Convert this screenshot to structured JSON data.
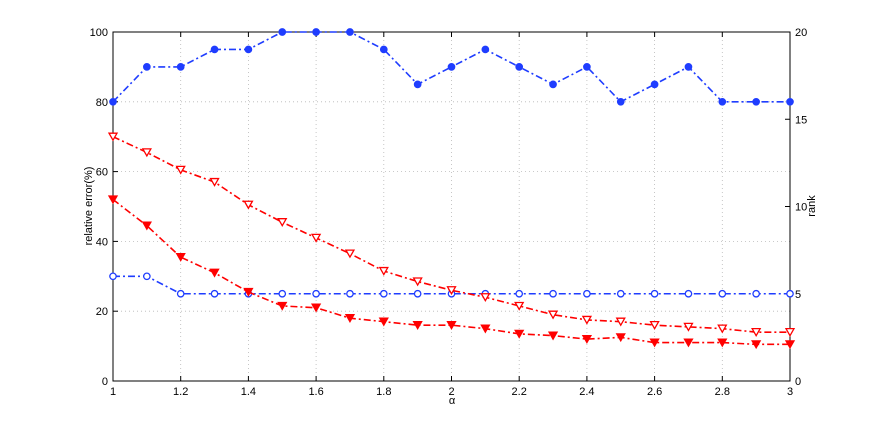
{
  "chart_data": {
    "type": "line",
    "xlabel": "α",
    "ylabel_left": "relative error(%)",
    "ylabel_right": "rank",
    "xlim": [
      1,
      3
    ],
    "ylim_left": [
      0,
      100
    ],
    "ylim_right": [
      0,
      20
    ],
    "grid": true,
    "x": [
      1.0,
      1.1,
      1.2,
      1.3,
      1.4,
      1.5,
      1.6,
      1.7,
      1.8,
      1.9,
      2.0,
      2.1,
      2.2,
      2.3,
      2.4,
      2.5,
      2.6,
      2.7,
      2.8,
      2.9,
      3.0
    ],
    "x_ticks": [
      "1",
      "1.2",
      "1.4",
      "1.6",
      "1.8",
      "2",
      "2.2",
      "2.4",
      "2.6",
      "2.8",
      "3"
    ],
    "y_ticks_left": [
      "0",
      "20",
      "40",
      "60",
      "80",
      "100"
    ],
    "y_ticks_right": [
      "0",
      "5",
      "10",
      "15",
      "20"
    ],
    "series": [
      {
        "axis": "right",
        "color": "#1f3dff",
        "marker": "circle-filled",
        "values": [
          16,
          18,
          18,
          19,
          19,
          20,
          20,
          20,
          19,
          17,
          18,
          19,
          18,
          17,
          18,
          16,
          17,
          18,
          16,
          16,
          16
        ]
      },
      {
        "axis": "right",
        "color": "#1f3dff",
        "marker": "circle-open",
        "values": [
          6,
          6,
          5,
          5,
          5,
          5,
          5,
          5,
          5,
          5,
          5,
          5,
          5,
          5,
          5,
          5,
          5,
          5,
          5,
          5,
          5
        ]
      },
      {
        "axis": "left",
        "color": "#ff0000",
        "marker": "triangle-down-open",
        "values": [
          70,
          65.5,
          60.5,
          57,
          50.5,
          45.5,
          41,
          36.5,
          31.5,
          28.5,
          26,
          24,
          21.5,
          19,
          17.5,
          17,
          16,
          15.5,
          15,
          14,
          14
        ]
      },
      {
        "axis": "left",
        "color": "#ff0000",
        "marker": "triangle-down-filled",
        "values": [
          52,
          44.5,
          35.5,
          31,
          25.5,
          21.5,
          21,
          18,
          17,
          16,
          16,
          15,
          13.5,
          13,
          12,
          12.5,
          11,
          11,
          11,
          10.5,
          10.5
        ]
      }
    ]
  }
}
